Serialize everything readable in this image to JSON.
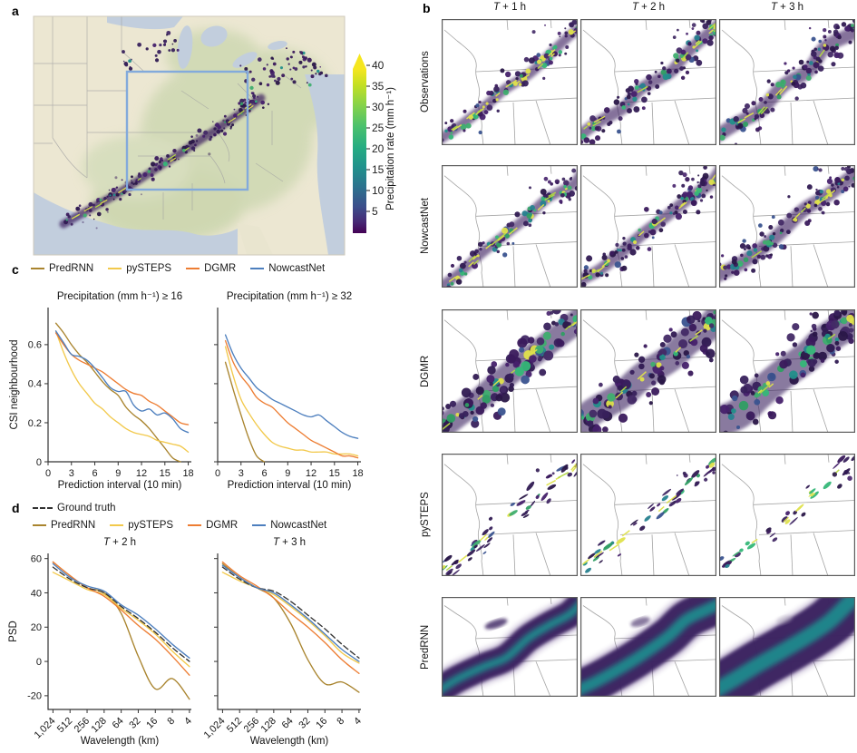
{
  "panels": {
    "a": "a",
    "b": "b",
    "c": "c",
    "d": "d"
  },
  "panel_a": {
    "colorbar": {
      "label": "Precipitation rate (mm h⁻¹)",
      "tick_values": [
        5,
        10,
        15,
        20,
        25,
        30,
        35,
        40
      ]
    },
    "region_box_color": "#83aadb"
  },
  "panel_b": {
    "col_headers": [
      "T + 1 h",
      "T + 2 h",
      "T + 3 h"
    ],
    "rows": [
      {
        "label": "Observations",
        "style": "radar"
      },
      {
        "label": "NowcastNet",
        "style": "radar"
      },
      {
        "label": "DGMR",
        "style": "broad"
      },
      {
        "label": "pySTEPS",
        "style": "fragmented"
      },
      {
        "label": "PredRNN",
        "style": "smooth"
      }
    ]
  },
  "legends": {
    "c": [
      {
        "label": "PredRNN",
        "color": "#a9842e"
      },
      {
        "label": "pySTEPS",
        "color": "#f2c94c"
      },
      {
        "label": "DGMR",
        "color": "#ed7d33"
      },
      {
        "label": "NowcastNet",
        "color": "#4d7fbe"
      }
    ],
    "d_row1": [
      {
        "label": "Ground truth",
        "color": "#333333",
        "dashed": true
      }
    ],
    "d_row2": [
      {
        "label": "PredRNN",
        "color": "#a9842e"
      },
      {
        "label": "pySTEPS",
        "color": "#f2c94c"
      },
      {
        "label": "DGMR",
        "color": "#ed7d33"
      },
      {
        "label": "NowcastNet",
        "color": "#4d7fbe"
      }
    ]
  },
  "chart_data": [
    {
      "type": "line",
      "title": "Precipitation (mm h⁻¹) ≥ 16",
      "xlabel": "Prediction interval (10 min)",
      "ylabel": "CSI neighbourhood",
      "xlim": [
        0,
        18.4
      ],
      "ylim": [
        0,
        0.79
      ],
      "xticks": [
        0,
        3,
        6,
        9,
        12,
        15,
        18
      ],
      "yticks": [
        0,
        0.2,
        0.4,
        0.6
      ],
      "show_ytick_labels": true,
      "x": [
        1,
        2,
        3,
        4,
        5,
        6,
        7,
        8,
        9,
        10,
        11,
        12,
        13,
        14,
        15,
        16,
        17,
        18
      ],
      "series": [
        {
          "name": "PredRNN",
          "color": "#a9842e",
          "values": [
            0.71,
            0.66,
            0.6,
            0.55,
            0.51,
            0.46,
            0.41,
            0.37,
            0.34,
            0.28,
            0.24,
            0.21,
            0.17,
            0.12,
            0.07,
            0.02,
            0,
            null
          ]
        },
        {
          "name": "pySTEPS",
          "color": "#f2c94c",
          "values": [
            0.67,
            0.56,
            0.47,
            0.4,
            0.35,
            0.3,
            0.27,
            0.23,
            0.2,
            0.17,
            0.15,
            0.14,
            0.13,
            0.11,
            0.1,
            0.09,
            0.08,
            0.05
          ]
        },
        {
          "name": "DGMR",
          "color": "#ed7d33",
          "values": [
            0.66,
            0.6,
            0.55,
            0.52,
            0.5,
            0.48,
            0.46,
            0.43,
            0.4,
            0.37,
            0.35,
            0.34,
            0.31,
            0.29,
            0.26,
            0.23,
            0.2,
            0.19
          ]
        },
        {
          "name": "NowcastNet",
          "color": "#4d7fbe",
          "values": [
            0.67,
            0.61,
            0.55,
            0.54,
            0.52,
            0.48,
            0.43,
            0.38,
            0.36,
            0.36,
            0.29,
            0.26,
            0.27,
            0.24,
            0.25,
            0.22,
            0.17,
            0.15
          ]
        }
      ]
    },
    {
      "type": "line",
      "title": "Precipitation (mm h⁻¹) ≥ 32",
      "xlabel": "Prediction interval (10 min)",
      "ylabel": "",
      "xlim": [
        0,
        18.4
      ],
      "ylim": [
        0,
        0.79
      ],
      "xticks": [
        0,
        3,
        6,
        9,
        12,
        15,
        18
      ],
      "yticks": [
        0,
        0.2,
        0.4,
        0.6
      ],
      "show_ytick_labels": false,
      "x": [
        1,
        2,
        3,
        4,
        5,
        6,
        7,
        8,
        9,
        10,
        11,
        12,
        13,
        14,
        15,
        16,
        17,
        18
      ],
      "series": [
        {
          "name": "PredRNN",
          "color": "#a9842e",
          "values": [
            0.51,
            0.37,
            0.24,
            0.12,
            0.03,
            0,
            null,
            null,
            null,
            null,
            null,
            null,
            null,
            null,
            null,
            null,
            null,
            null
          ]
        },
        {
          "name": "pySTEPS",
          "color": "#f2c94c",
          "values": [
            0.59,
            0.44,
            0.32,
            0.25,
            0.19,
            0.14,
            0.1,
            0.08,
            0.07,
            0.06,
            0.06,
            0.05,
            0.05,
            0.05,
            0.04,
            0.04,
            0.04,
            0.03
          ]
        },
        {
          "name": "DGMR",
          "color": "#ed7d33",
          "values": [
            0.62,
            0.51,
            0.44,
            0.39,
            0.33,
            0.3,
            0.28,
            0.24,
            0.2,
            0.17,
            0.14,
            0.11,
            0.09,
            0.07,
            0.05,
            0.03,
            0.03,
            0.02
          ]
        },
        {
          "name": "NowcastNet",
          "color": "#4d7fbe",
          "values": [
            0.65,
            0.55,
            0.48,
            0.43,
            0.38,
            0.35,
            0.32,
            0.3,
            0.28,
            0.26,
            0.24,
            0.23,
            0.24,
            0.21,
            0.18,
            0.15,
            0.13,
            0.12
          ]
        }
      ]
    },
    {
      "type": "line",
      "title": "T + 2 h",
      "xlabel": "Wavelength (km)",
      "ylabel": "PSD",
      "xscale": "log2",
      "ylim": [
        -28,
        63
      ],
      "x": [
        1024,
        512,
        256,
        128,
        64,
        32,
        16,
        8,
        4
      ],
      "xtick_labels": [
        "1,024",
        "512",
        "256",
        "128",
        "64",
        "32",
        "16",
        "8",
        "4"
      ],
      "yticks": [
        -20,
        0,
        20,
        40,
        60
      ],
      "show_ytick_labels": true,
      "series": [
        {
          "name": "PredRNN",
          "color": "#a9842e",
          "values": [
            58,
            50,
            43,
            40,
            28,
            3,
            -16,
            -10,
            -22
          ]
        },
        {
          "name": "pySTEPS",
          "color": "#f2c94c",
          "values": [
            52,
            47,
            42,
            39,
            31,
            24,
            16,
            6,
            -3
          ]
        },
        {
          "name": "DGMR",
          "color": "#ed7d33",
          "values": [
            58,
            50,
            43,
            38,
            30,
            21,
            13,
            3,
            -8
          ]
        },
        {
          "name": "Ground truth",
          "color": "#333333",
          "dashed": true,
          "values": [
            55,
            48,
            43,
            40,
            32,
            25,
            17,
            8,
            0
          ]
        },
        {
          "name": "NowcastNet",
          "color": "#4d7fbe",
          "values": [
            57,
            49,
            44,
            41,
            33,
            27,
            19,
            10,
            2
          ]
        }
      ]
    },
    {
      "type": "line",
      "title": "T + 3 h",
      "xlabel": "Wavelength (km)",
      "ylabel": "",
      "xscale": "log2",
      "ylim": [
        -28,
        63
      ],
      "x": [
        1024,
        512,
        256,
        128,
        64,
        32,
        16,
        8,
        4
      ],
      "xtick_labels": [
        "1,024",
        "512",
        "256",
        "128",
        "64",
        "32",
        "16",
        "8",
        "4"
      ],
      "yticks": [
        -20,
        0,
        20,
        40,
        60
      ],
      "show_ytick_labels": false,
      "series": [
        {
          "name": "PredRNN",
          "color": "#a9842e",
          "values": [
            57,
            49,
            43,
            37,
            22,
            1,
            -13,
            -12,
            -18
          ]
        },
        {
          "name": "pySTEPS",
          "color": "#f2c94c",
          "values": [
            52,
            47,
            43,
            39,
            32,
            24,
            15,
            5,
            -1
          ]
        },
        {
          "name": "DGMR",
          "color": "#ed7d33",
          "values": [
            58,
            50,
            44,
            37,
            28,
            20,
            11,
            1,
            -7
          ]
        },
        {
          "name": "Ground truth",
          "color": "#333333",
          "dashed": true,
          "values": [
            55,
            48,
            43,
            41,
            35,
            27,
            19,
            10,
            2
          ]
        },
        {
          "name": "NowcastNet",
          "color": "#4d7fbe",
          "values": [
            56,
            49,
            43,
            40,
            33,
            25,
            16,
            7,
            0
          ]
        }
      ]
    }
  ]
}
